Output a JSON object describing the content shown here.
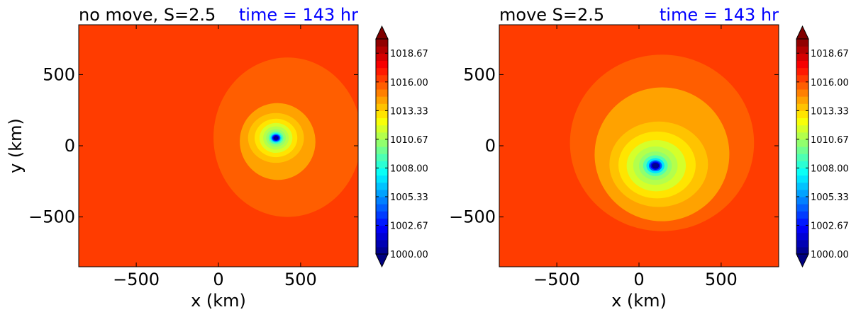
{
  "chart_data": [
    {
      "type": "heatmap",
      "title": "no move, S=2.5",
      "annotation": "time = 143 hr",
      "xlabel": "x (km)",
      "ylabel": "y (km)",
      "xlim": [
        -850,
        850
      ],
      "ylim": [
        -850,
        850
      ],
      "xticks": [
        {
          "value": -500,
          "label": "−500"
        },
        {
          "value": 0,
          "label": "0"
        },
        {
          "value": 500,
          "label": "500"
        }
      ],
      "yticks": [
        {
          "value": 500,
          "label": "500"
        },
        {
          "value": 0,
          "label": "0"
        },
        {
          "value": -500,
          "label": "−500"
        }
      ],
      "background_level": 1016.5,
      "center": {
        "x": 350,
        "y": 60
      },
      "contour_regions": [
        {
          "level": 1015.5,
          "cx": 420,
          "cy": 60,
          "rx": 450,
          "ry": 560,
          "rot": 0
        },
        {
          "level": 1014.5,
          "cx": 360,
          "cy": 30,
          "rx": 230,
          "ry": 270,
          "rot": -10
        },
        {
          "level": 1013.6,
          "cx": 350,
          "cy": 55,
          "rx": 170,
          "ry": 175,
          "rot": 0
        },
        {
          "level": 1012.7,
          "cx": 350,
          "cy": 55,
          "rx": 130,
          "ry": 135,
          "rot": 0
        },
        {
          "level": 1011.8,
          "cx": 350,
          "cy": 55,
          "rx": 100,
          "ry": 105,
          "rot": 0
        },
        {
          "level": 1010.9,
          "cx": 350,
          "cy": 55,
          "rx": 78,
          "ry": 82,
          "rot": 0
        },
        {
          "level": 1010.0,
          "cx": 350,
          "cy": 55,
          "rx": 60,
          "ry": 62,
          "rot": 0
        },
        {
          "level": 1008.7,
          "cx": 350,
          "cy": 55,
          "rx": 45,
          "ry": 45,
          "rot": 0
        },
        {
          "level": 1007.0,
          "cx": 350,
          "cy": 55,
          "rx": 34,
          "ry": 33,
          "rot": 0
        },
        {
          "level": 1004.5,
          "cx": 350,
          "cy": 55,
          "rx": 27,
          "ry": 26,
          "rot": 0
        },
        {
          "level": 1002.0,
          "cx": 350,
          "cy": 55,
          "rx": 21,
          "ry": 20,
          "rot": 0
        },
        {
          "level": 1000.3,
          "cx": 350,
          "cy": 55,
          "rx": 15,
          "ry": 14,
          "rot": 0
        }
      ],
      "colorbar": {
        "min": 1000.0,
        "max": 1020.0,
        "ticks": [
          "1018.67",
          "1016.00",
          "1013.33",
          "1010.67",
          "1008.00",
          "1005.33",
          "1002.67",
          "1000.00"
        ],
        "tick_values": [
          1018.67,
          1016.0,
          1013.33,
          1010.67,
          1008.0,
          1005.33,
          1002.67,
          1000.0
        ],
        "extend": "both",
        "colormap": "jet"
      }
    },
    {
      "type": "heatmap",
      "title": "move S=2.5",
      "annotation": "time = 143 hr",
      "xlabel": "x (km)",
      "ylabel": "",
      "xlim": [
        -850,
        850
      ],
      "ylim": [
        -850,
        850
      ],
      "xticks": [
        {
          "value": -500,
          "label": "−500"
        },
        {
          "value": 0,
          "label": "0"
        },
        {
          "value": 500,
          "label": "500"
        }
      ],
      "yticks": [
        {
          "value": 500,
          "label": "500"
        },
        {
          "value": 0,
          "label": "0"
        },
        {
          "value": -500,
          "label": "−500"
        }
      ],
      "background_level": 1016.5,
      "center": {
        "x": 100,
        "y": -140
      },
      "contour_regions": [
        {
          "level": 1015.5,
          "cx": 140,
          "cy": 20,
          "rx": 560,
          "ry": 620,
          "rot": 0
        },
        {
          "level": 1014.5,
          "cx": 140,
          "cy": -60,
          "rx": 410,
          "ry": 470,
          "rot": -15
        },
        {
          "level": 1013.6,
          "cx": 120,
          "cy": -130,
          "rx": 300,
          "ry": 300,
          "rot": 0
        },
        {
          "level": 1012.7,
          "cx": 110,
          "cy": -135,
          "rx": 235,
          "ry": 235,
          "rot": 0
        },
        {
          "level": 1011.8,
          "cx": 105,
          "cy": -140,
          "rx": 180,
          "ry": 180,
          "rot": 0
        },
        {
          "level": 1010.9,
          "cx": 100,
          "cy": -140,
          "rx": 135,
          "ry": 135,
          "rot": 0
        },
        {
          "level": 1010.0,
          "cx": 100,
          "cy": -140,
          "rx": 100,
          "ry": 100,
          "rot": 0
        },
        {
          "level": 1008.7,
          "cx": 100,
          "cy": -140,
          "rx": 75,
          "ry": 73,
          "rot": 0
        },
        {
          "level": 1007.0,
          "cx": 100,
          "cy": -140,
          "rx": 55,
          "ry": 53,
          "rot": 0
        },
        {
          "level": 1004.5,
          "cx": 100,
          "cy": -140,
          "rx": 40,
          "ry": 38,
          "rot": 0
        },
        {
          "level": 1002.0,
          "cx": 100,
          "cy": -140,
          "rx": 30,
          "ry": 29,
          "rot": 0
        },
        {
          "level": 1000.3,
          "cx": 100,
          "cy": -140,
          "rx": 22,
          "ry": 21,
          "rot": 0
        }
      ],
      "colorbar": {
        "min": 1000.0,
        "max": 1020.0,
        "ticks": [
          "1018.67",
          "1016.00",
          "1013.33",
          "1010.67",
          "1008.00",
          "1005.33",
          "1002.67",
          "1000.00"
        ],
        "tick_values": [
          1018.67,
          1016.0,
          1013.33,
          1010.67,
          1008.0,
          1005.33,
          1002.67,
          1000.0
        ],
        "extend": "both",
        "colormap": "jet"
      }
    }
  ]
}
